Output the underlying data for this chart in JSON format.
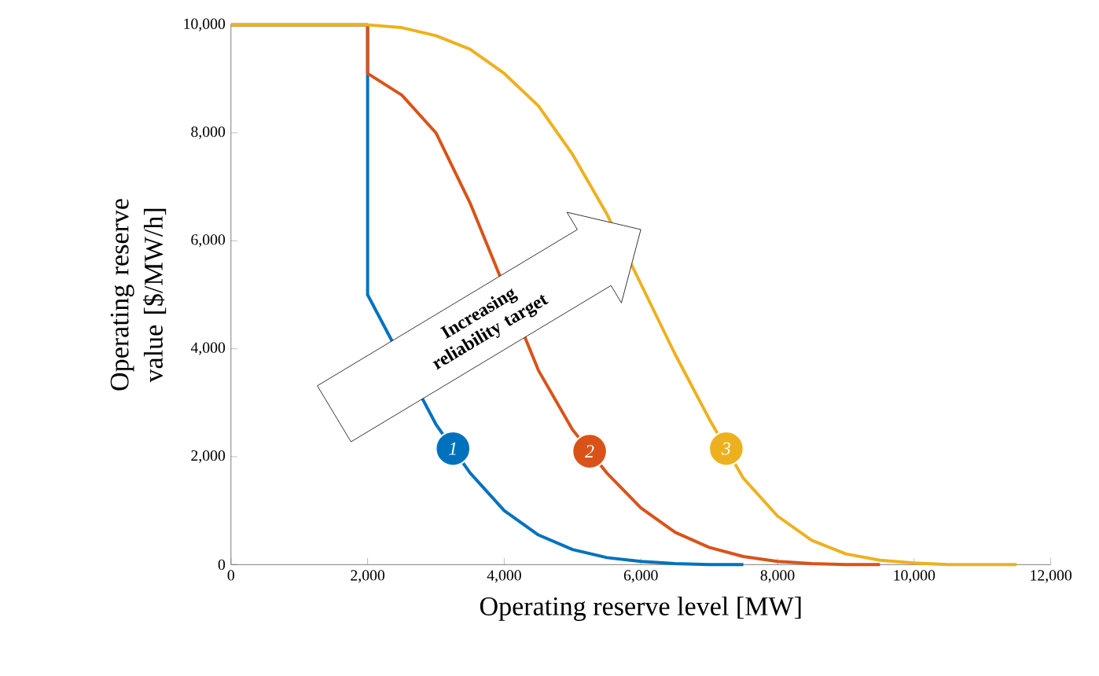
{
  "chart_data": {
    "type": "line",
    "xlabel": "Operating reserve level [MW]",
    "ylabel": "Operating reserve value [$/MW/h]",
    "xlim": [
      0,
      12000
    ],
    "ylim": [
      0,
      10000
    ],
    "xticks": [
      0,
      {
        "value": 2000,
        "label": "2,000"
      },
      {
        "value": 4000,
        "label": "4,000"
      },
      {
        "value": 6000,
        "label": "6,000"
      },
      {
        "value": 8000,
        "label": "8,000"
      },
      {
        "value": 10000,
        "label": "10,000"
      },
      {
        "value": 12000,
        "label": "12,000"
      }
    ],
    "yticks": [
      0,
      {
        "value": 2000,
        "label": "2,000"
      },
      {
        "value": 4000,
        "label": "4,000"
      },
      {
        "value": 6000,
        "label": "6,000"
      },
      {
        "value": 8000,
        "label": "8,000"
      },
      {
        "value": 10000,
        "label": "10,000"
      }
    ],
    "grid": false,
    "marker": "none",
    "line_style": "solid",
    "series": [
      {
        "color": "#0072bd",
        "x": [
          0,
          2000,
          2000,
          3000,
          3500,
          4000,
          4500,
          5000,
          5500,
          6000,
          6500,
          7000,
          7500
        ],
        "values": [
          10000,
          10000,
          5000,
          2600,
          1700,
          1000,
          550,
          280,
          130,
          60,
          20,
          0,
          0
        ]
      },
      {
        "color": "#d95319",
        "x": [
          0,
          2000,
          2000,
          2500,
          3000,
          3500,
          4500,
          5000,
          5500,
          6000,
          6500,
          7000,
          7500,
          8000,
          8500,
          9000,
          9500
        ],
        "values": [
          10000,
          10000,
          9100,
          8700,
          8000,
          6700,
          3600,
          2500,
          1700,
          1050,
          600,
          320,
          150,
          60,
          20,
          0,
          0
        ]
      },
      {
        "color": "#edb120",
        "x": [
          0,
          2000,
          2500,
          3000,
          3500,
          4000,
          4500,
          5000,
          5500,
          6000,
          6500,
          7000,
          7500,
          8000,
          8500,
          9000,
          9500,
          10000,
          10500,
          11000,
          11500
        ],
        "values": [
          10000,
          10000,
          9950,
          9800,
          9550,
          9100,
          8500,
          7600,
          6500,
          5200,
          3900,
          2700,
          1600,
          900,
          450,
          200,
          80,
          30,
          0,
          0,
          0
        ]
      }
    ],
    "annotations": [
      {
        "text": "1",
        "x": 3250,
        "y": 2150
      },
      {
        "text": "2",
        "x": 5250,
        "y": 2100
      },
      {
        "text": "3",
        "x": 7250,
        "y": 2150
      },
      "Increasing reliability target"
    ]
  }
}
